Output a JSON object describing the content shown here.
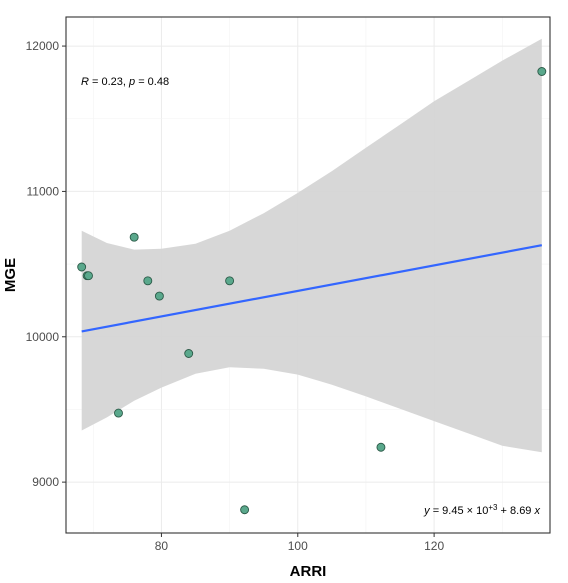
{
  "chart_data": {
    "type": "scatter",
    "xlabel": "ARRI",
    "ylabel": "MGE",
    "xlim": [
      66,
      137
    ],
    "ylim": [
      8650,
      12200
    ],
    "x_ticks": [
      80,
      100,
      120
    ],
    "y_ticks": [
      9000,
      10000,
      11000,
      12000
    ],
    "grid": true,
    "points": [
      {
        "x": 68.3,
        "y": 10480
      },
      {
        "x": 69.1,
        "y": 10420
      },
      {
        "x": 69.3,
        "y": 10420
      },
      {
        "x": 73.7,
        "y": 9475
      },
      {
        "x": 76.0,
        "y": 10685
      },
      {
        "x": 78.0,
        "y": 10385
      },
      {
        "x": 79.7,
        "y": 10280
      },
      {
        "x": 84.0,
        "y": 9885
      },
      {
        "x": 90.0,
        "y": 10385
      },
      {
        "x": 92.2,
        "y": 8810
      },
      {
        "x": 112.2,
        "y": 9240
      },
      {
        "x": 135.8,
        "y": 11825
      }
    ],
    "fit_line": {
      "x": [
        68.3,
        135.8
      ],
      "y": [
        10037,
        10630
      ]
    },
    "confidence_band": {
      "x": [
        68.3,
        72,
        76,
        80,
        85,
        90,
        95,
        100,
        105,
        110,
        115,
        120,
        125,
        130,
        135.8
      ],
      "upper": [
        10730,
        10645,
        10600,
        10605,
        10640,
        10730,
        10850,
        10990,
        11140,
        11300,
        11460,
        11620,
        11760,
        11900,
        12050
      ],
      "lower": [
        9355,
        9445,
        9560,
        9650,
        9745,
        9790,
        9780,
        9740,
        9670,
        9590,
        9505,
        9420,
        9335,
        9250,
        9205
      ]
    },
    "annotations": {
      "correlation": {
        "r_label": "R",
        "r_text": " = 0.23, ",
        "p_label": "p",
        "p_text": " = 0.48"
      },
      "equation": {
        "y_label": "y",
        "part1": " = 9.45 × 10",
        "exponent": "+3",
        "part2": " + 8.69 ",
        "x_label": "x"
      }
    },
    "colors": {
      "point_fill": "#5aa88c",
      "point_stroke": "#2c5a48",
      "fit_line": "#3366ff",
      "band": "#d5d5d5",
      "panel_border": "#333333"
    }
  }
}
